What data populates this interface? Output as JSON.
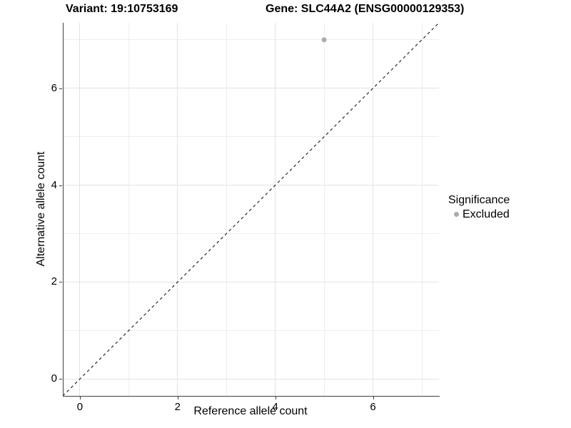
{
  "chart_data": {
    "type": "scatter",
    "title_left": "Variant: 19:10753169",
    "title_right": "Gene: SLC44A2 (ENSG00000129353)",
    "xlabel": "Reference allele count",
    "ylabel": "Alternative allele count",
    "xlim": [
      -0.35,
      7.35
    ],
    "ylim": [
      -0.35,
      7.35
    ],
    "x_major_ticks": [
      0,
      2,
      4,
      6
    ],
    "y_major_ticks": [
      0,
      2,
      4,
      6
    ],
    "x_minor_ticks": [
      1,
      3,
      5,
      7
    ],
    "y_minor_ticks": [
      1,
      3,
      5,
      7
    ],
    "grid": "major and minor gridlines, light gray on white",
    "legend_position": "right",
    "series": [
      {
        "name": "Excluded",
        "color": "#ababab",
        "points": [
          {
            "x": 5,
            "y": 7
          }
        ]
      }
    ],
    "reference_line": {
      "kind": "identity y=x",
      "style": "dashed",
      "color": "#000000"
    }
  },
  "legend": {
    "title": "Significance",
    "items": [
      {
        "label": "Excluded",
        "color": "#ababab"
      }
    ]
  },
  "colors": {
    "background": "#ffffff",
    "axis_line": "#404040",
    "tick_label": "#000000",
    "grid_major": "#e3e3e3",
    "grid_minor": "#eeeeee",
    "point": "#ababab"
  }
}
